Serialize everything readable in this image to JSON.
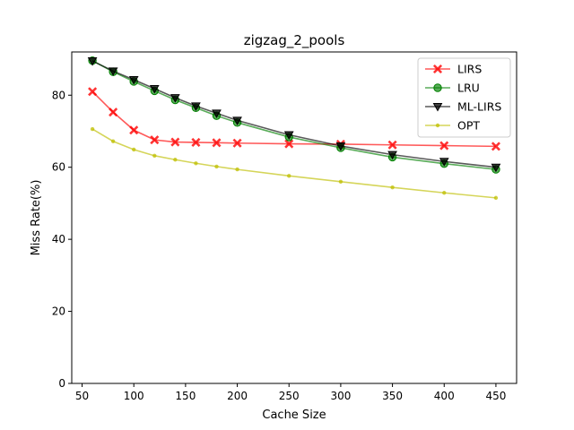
{
  "chart_data": {
    "type": "line",
    "title": "zigzag_2_pools",
    "xlabel": "Cache Size",
    "ylabel": "Miss Rate(%)",
    "xlim": [
      40,
      470
    ],
    "ylim": [
      0,
      92
    ],
    "xticks": [
      50,
      100,
      150,
      200,
      250,
      300,
      350,
      400,
      450
    ],
    "yticks": [
      0,
      20,
      40,
      60,
      80
    ],
    "legend_position": "top-right",
    "grid": false,
    "x": [
      60,
      80,
      100,
      120,
      140,
      160,
      180,
      200,
      250,
      300,
      350,
      400,
      450
    ],
    "series": [
      {
        "name": "LIRS",
        "color": "#ff0000",
        "marker": "X",
        "values": [
          81.0,
          75.3,
          70.3,
          67.6,
          67.0,
          66.9,
          66.8,
          66.7,
          66.5,
          66.4,
          66.2,
          66.0,
          65.8
        ]
      },
      {
        "name": "LRU",
        "color": "#008000",
        "marker": "o",
        "values": [
          89.6,
          86.5,
          83.8,
          81.2,
          78.7,
          76.5,
          74.3,
          72.4,
          68.4,
          65.4,
          62.8,
          61.0,
          59.4
        ]
      },
      {
        "name": "ML-LIRS",
        "color": "#000000",
        "marker": "v",
        "values": [
          89.5,
          86.7,
          84.3,
          81.8,
          79.3,
          77.0,
          75.0,
          73.0,
          69.0,
          65.9,
          63.5,
          61.6,
          60.0
        ]
      },
      {
        "name": "OPT",
        "color": "#bfbf00",
        "marker": ".",
        "values": [
          70.6,
          67.2,
          64.9,
          63.2,
          62.1,
          61.1,
          60.2,
          59.4,
          57.6,
          56.0,
          54.4,
          52.9,
          51.5
        ]
      }
    ]
  }
}
